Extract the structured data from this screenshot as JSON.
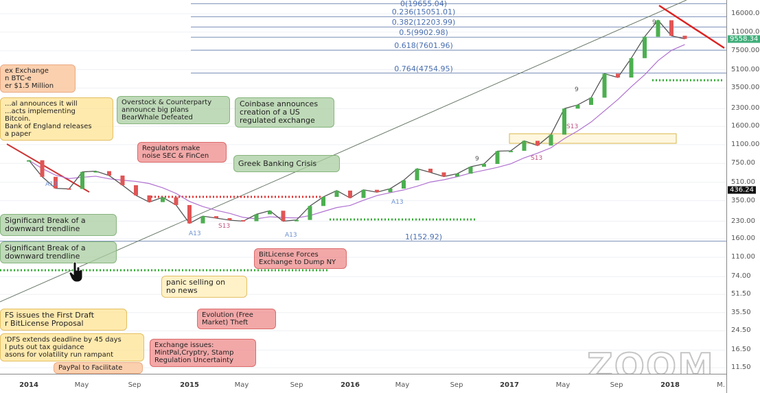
{
  "chart_data": {
    "type": "line",
    "title": "",
    "xlabel": "",
    "ylabel": "",
    "yscale": "log",
    "ylim": [
      10,
      20000
    ],
    "xlim": [
      "2013-12",
      "2018-03"
    ],
    "grid": true,
    "x": [
      "2014-01",
      "2014-02",
      "2014-03",
      "2014-04",
      "2014-05",
      "2014-06",
      "2014-07",
      "2014-08",
      "2014-09",
      "2014-10",
      "2014-11",
      "2014-12",
      "2015-01",
      "2015-02",
      "2015-03",
      "2015-04",
      "2015-05",
      "2015-06",
      "2015-07",
      "2015-08",
      "2015-09",
      "2015-10",
      "2015-11",
      "2015-12",
      "2016-01",
      "2016-02",
      "2016-03",
      "2016-04",
      "2016-05",
      "2016-06",
      "2016-07",
      "2016-08",
      "2016-09",
      "2016-10",
      "2016-11",
      "2016-12",
      "2017-01",
      "2017-02",
      "2017-03",
      "2017-04",
      "2017-05",
      "2017-06",
      "2017-07",
      "2017-08",
      "2017-09",
      "2017-10",
      "2017-11",
      "2017-12",
      "2018-01",
      "2018-02"
    ],
    "values": [
      800,
      570,
      450,
      445,
      630,
      640,
      585,
      480,
      390,
      340,
      375,
      320,
      220,
      255,
      245,
      235,
      230,
      265,
      285,
      230,
      236,
      314,
      378,
      430,
      370,
      437,
      416,
      448,
      531,
      673,
      624,
      573,
      608,
      700,
      742,
      963,
      970,
      1190,
      1080,
      1350,
      2300,
      2480,
      2875,
      4700,
      4340,
      6450,
      10000,
      14000,
      10200,
      9558.34
    ],
    "y_ticks": [
      "16000.00",
      "11000.00",
      "7500.00",
      "5100.00",
      "3500.00",
      "2300.00",
      "1600.00",
      "1100.00",
      "750.00",
      "510.00",
      "350.00",
      "230.00",
      "160.00",
      "110.00",
      "74.00",
      "51.50",
      "35.50",
      "24.50",
      "16.50",
      "11.50"
    ],
    "x_ticks": [
      {
        "label": "2014",
        "bold": true
      },
      {
        "label": "May"
      },
      {
        "label": "Sep"
      },
      {
        "label": "2015",
        "bold": true
      },
      {
        "label": "May"
      },
      {
        "label": "Sep"
      },
      {
        "label": "2016",
        "bold": true
      },
      {
        "label": "May"
      },
      {
        "label": "Sep"
      },
      {
        "label": "2017",
        "bold": true
      },
      {
        "label": "May"
      },
      {
        "label": "Sep"
      },
      {
        "label": "2018",
        "bold": true
      },
      {
        "label": "M."
      }
    ],
    "fibonacci": [
      {
        "label": "0(19655.04)",
        "price": 19655.04
      },
      {
        "label": "0.236(15051.01)",
        "price": 15051.01
      },
      {
        "label": "0.382(12203.99)",
        "price": 12203.99
      },
      {
        "label": "0.5(9902.98)",
        "price": 9902.98
      },
      {
        "label": "0.618(7601.96)",
        "price": 7601.96
      },
      {
        "label": "0.764(4754.95)",
        "price": 4754.95
      },
      {
        "label": "1(152.92)",
        "price": 152.92
      }
    ],
    "price_badges": [
      {
        "label": "9558.34",
        "price": 9558.34,
        "color": "#3fae7a"
      },
      {
        "label": "436.24",
        "price": 436.24,
        "color": "#111111"
      }
    ],
    "line_color": "#555555"
  },
  "annotations": {
    "a1": "ex Exchange\nn BTC-e\ner $1.5 Million",
    "a2": "...al announces it will\n...acts implementing\nBitcoin.\nBank of England releases\na paper",
    "a3": "Overstock & Counterparty\nannounce big plans\nBearWhale Defeated",
    "a4": "Coinbase announces\ncreation of a US\nregulated exchange",
    "a5": "Regulators make\nnoise SEC & FinCen",
    "a6": "Greek Banking Crisis",
    "a7": "Significant Break of a\ndownward trendline",
    "a8": "Significant Break of a\ndownward trendline",
    "a9": "FS issues the First Draft\nr BitLicense Proposal",
    "a10": "'DFS extends deadline by 45 days\nl puts out tax guidance\nasons for volatility run rampant",
    "a11": "PayPal to Facilitate",
    "a12": "Exchange issues:\nMintPal,Cryptry, Stamp\nRegulation Uncertainty",
    "a13": "BitLicense Forces\nExchange to Dump NY",
    "a14": "panic selling on\nno news",
    "a15": "Evolution (Free\nMarket) Theft"
  },
  "markers": {
    "a13": "A13",
    "s13": "S13",
    "nine": "9"
  },
  "watermark": "zoom"
}
